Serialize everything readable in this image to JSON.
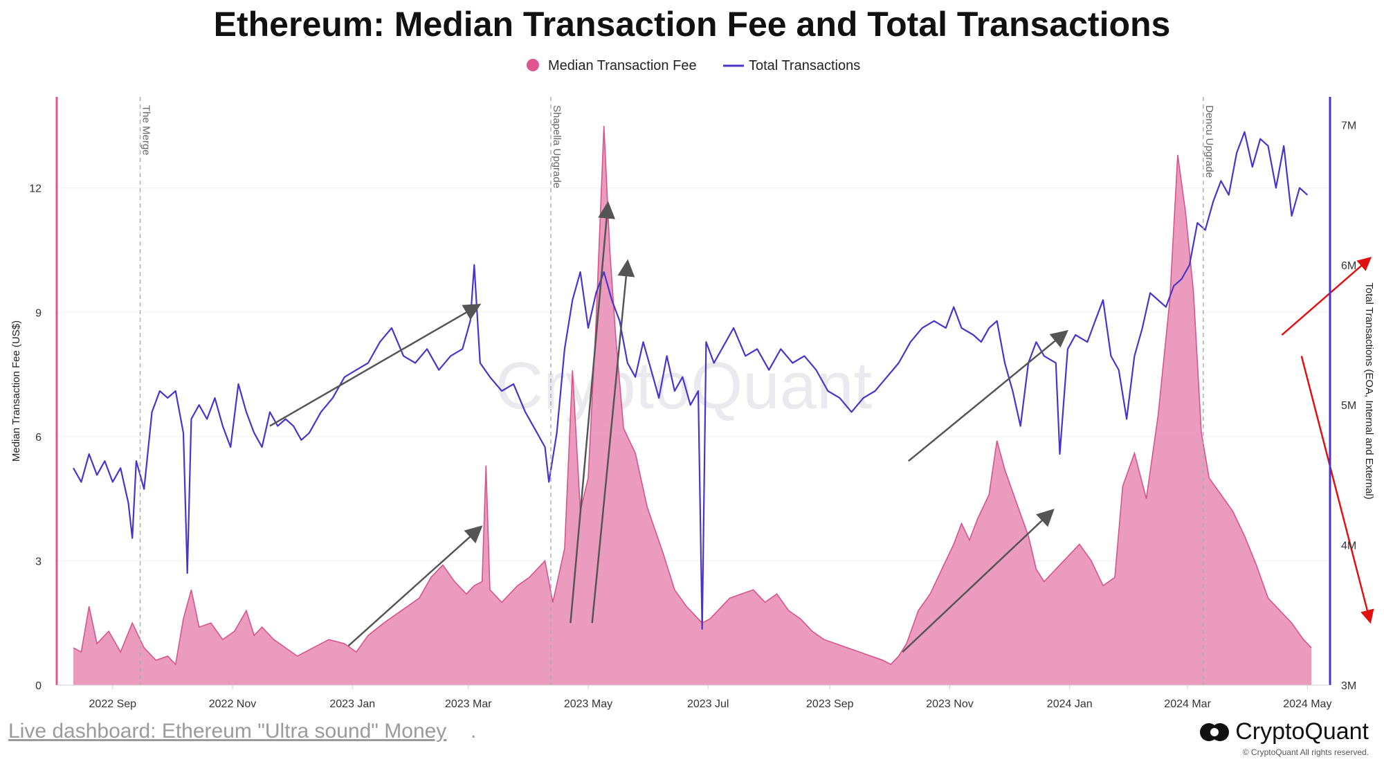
{
  "footer": {
    "link_text": "Live dashboard: Ethereum \"Ultra sound\" Money",
    "link_suffix": ".",
    "brand": "CryptoQuant",
    "copyright": "© CryptoQuant All rights reserved."
  },
  "colors": {
    "fee_fill": "#e993b9",
    "fee_line": "#d9538b",
    "tx_line": "#4a33cc",
    "arrow_grey": "#555555",
    "arrow_red": "#e01010",
    "left_axis": "#e05590",
    "right_axis": "#4a33cc"
  },
  "chart_data": {
    "type": "area+line",
    "title": "Ethereum: Median Transaction Fee and Total Transactions",
    "watermark": "CryptoQuant",
    "legend": [
      {
        "name": "Median Transaction Fee",
        "marker": "circle"
      },
      {
        "name": "Total Transactions",
        "marker": "line"
      }
    ],
    "x_axis": {
      "start": "2022-08-12",
      "end": "2024-05-04",
      "ticks": [
        {
          "label": "2022 Sep",
          "day": 20
        },
        {
          "label": "2022 Nov",
          "day": 81
        },
        {
          "label": "2023 Jan",
          "day": 142
        },
        {
          "label": "2023 Mar",
          "day": 201
        },
        {
          "label": "2023 May",
          "day": 262
        },
        {
          "label": "2023 Jul",
          "day": 323
        },
        {
          "label": "2023 Sep",
          "day": 385
        },
        {
          "label": "2023 Nov",
          "day": 446
        },
        {
          "label": "2024 Jan",
          "day": 507
        },
        {
          "label": "2024 Mar",
          "day": 567
        },
        {
          "label": "2024 May",
          "day": 628
        }
      ]
    },
    "y_left": {
      "label": "Median Transaction Fee (US$)",
      "min": 0,
      "max": 14.2,
      "ticks": [
        0,
        3,
        6,
        9,
        12
      ]
    },
    "y_right": {
      "label": "Total Transactions (EOA, Internal and External)",
      "min": 3000000,
      "max": 7200000,
      "ticks": [
        {
          "value": 3000000,
          "label": "3M"
        },
        {
          "value": 4000000,
          "label": "4M"
        },
        {
          "value": 5000000,
          "label": "5M"
        },
        {
          "value": 6000000,
          "label": "6M"
        },
        {
          "value": 7000000,
          "label": "7M"
        }
      ]
    },
    "events": [
      {
        "label": "The Merge",
        "day": 34
      },
      {
        "label": "Shapella Upgrade",
        "day": 243
      },
      {
        "label": "Dencu Upgrade",
        "day": 575
      }
    ],
    "series": [
      {
        "name": "Median Transaction Fee",
        "axis": "left",
        "kind": "area",
        "points": [
          [
            0,
            0.9
          ],
          [
            4,
            0.8
          ],
          [
            8,
            1.9
          ],
          [
            12,
            1.0
          ],
          [
            18,
            1.3
          ],
          [
            24,
            0.8
          ],
          [
            30,
            1.5
          ],
          [
            36,
            0.9
          ],
          [
            42,
            0.6
          ],
          [
            48,
            0.7
          ],
          [
            52,
            0.5
          ],
          [
            56,
            1.6
          ],
          [
            60,
            2.3
          ],
          [
            64,
            1.4
          ],
          [
            70,
            1.5
          ],
          [
            76,
            1.1
          ],
          [
            82,
            1.3
          ],
          [
            88,
            1.8
          ],
          [
            92,
            1.2
          ],
          [
            96,
            1.4
          ],
          [
            102,
            1.1
          ],
          [
            108,
            0.9
          ],
          [
            114,
            0.7
          ],
          [
            122,
            0.9
          ],
          [
            130,
            1.1
          ],
          [
            138,
            1.0
          ],
          [
            144,
            0.8
          ],
          [
            150,
            1.2
          ],
          [
            158,
            1.5
          ],
          [
            164,
            1.7
          ],
          [
            170,
            1.9
          ],
          [
            176,
            2.1
          ],
          [
            182,
            2.6
          ],
          [
            188,
            2.9
          ],
          [
            194,
            2.5
          ],
          [
            200,
            2.2
          ],
          [
            204,
            2.4
          ],
          [
            208,
            2.5
          ],
          [
            210,
            5.3
          ],
          [
            212,
            2.3
          ],
          [
            218,
            2.0
          ],
          [
            226,
            2.4
          ],
          [
            232,
            2.6
          ],
          [
            240,
            3.0
          ],
          [
            244,
            2.0
          ],
          [
            250,
            3.3
          ],
          [
            254,
            7.6
          ],
          [
            258,
            4.2
          ],
          [
            262,
            5.0
          ],
          [
            266,
            8.8
          ],
          [
            270,
            13.5
          ],
          [
            273,
            10.5
          ],
          [
            276,
            8.4
          ],
          [
            280,
            6.2
          ],
          [
            286,
            5.6
          ],
          [
            292,
            4.3
          ],
          [
            300,
            3.2
          ],
          [
            306,
            2.3
          ],
          [
            312,
            1.9
          ],
          [
            316,
            1.7
          ],
          [
            320,
            1.5
          ],
          [
            324,
            1.6
          ],
          [
            328,
            1.8
          ],
          [
            334,
            2.1
          ],
          [
            340,
            2.2
          ],
          [
            346,
            2.3
          ],
          [
            352,
            2.0
          ],
          [
            358,
            2.2
          ],
          [
            364,
            1.8
          ],
          [
            370,
            1.6
          ],
          [
            376,
            1.3
          ],
          [
            382,
            1.1
          ],
          [
            388,
            1.0
          ],
          [
            394,
            0.9
          ],
          [
            400,
            0.8
          ],
          [
            406,
            0.7
          ],
          [
            412,
            0.6
          ],
          [
            416,
            0.5
          ],
          [
            420,
            0.7
          ],
          [
            424,
            1.0
          ],
          [
            430,
            1.8
          ],
          [
            436,
            2.2
          ],
          [
            442,
            2.8
          ],
          [
            448,
            3.4
          ],
          [
            452,
            3.9
          ],
          [
            456,
            3.5
          ],
          [
            460,
            4.0
          ],
          [
            466,
            4.6
          ],
          [
            470,
            5.9
          ],
          [
            474,
            5.2
          ],
          [
            480,
            4.4
          ],
          [
            486,
            3.6
          ],
          [
            490,
            2.8
          ],
          [
            494,
            2.5
          ],
          [
            500,
            2.8
          ],
          [
            506,
            3.1
          ],
          [
            512,
            3.4
          ],
          [
            518,
            3.0
          ],
          [
            524,
            2.4
          ],
          [
            530,
            2.6
          ],
          [
            534,
            4.8
          ],
          [
            540,
            5.6
          ],
          [
            546,
            4.5
          ],
          [
            552,
            6.5
          ],
          [
            558,
            9.3
          ],
          [
            562,
            12.8
          ],
          [
            566,
            11.4
          ],
          [
            570,
            9.5
          ],
          [
            574,
            6.1
          ],
          [
            578,
            5.0
          ],
          [
            584,
            4.6
          ],
          [
            590,
            4.2
          ],
          [
            596,
            3.6
          ],
          [
            602,
            2.9
          ],
          [
            608,
            2.1
          ],
          [
            614,
            1.8
          ],
          [
            620,
            1.5
          ],
          [
            626,
            1.1
          ],
          [
            630,
            0.9
          ]
        ]
      },
      {
        "name": "Total Transactions",
        "axis": "right",
        "kind": "line",
        "points": [
          [
            0,
            4.55
          ],
          [
            4,
            4.45
          ],
          [
            8,
            4.65
          ],
          [
            12,
            4.5
          ],
          [
            16,
            4.6
          ],
          [
            20,
            4.45
          ],
          [
            24,
            4.55
          ],
          [
            28,
            4.3
          ],
          [
            30,
            4.05
          ],
          [
            32,
            4.6
          ],
          [
            36,
            4.4
          ],
          [
            40,
            4.95
          ],
          [
            44,
            5.1
          ],
          [
            48,
            5.05
          ],
          [
            52,
            5.1
          ],
          [
            56,
            4.8
          ],
          [
            58,
            3.8
          ],
          [
            60,
            4.9
          ],
          [
            64,
            5.0
          ],
          [
            68,
            4.9
          ],
          [
            72,
            5.05
          ],
          [
            76,
            4.85
          ],
          [
            80,
            4.7
          ],
          [
            84,
            5.15
          ],
          [
            88,
            4.95
          ],
          [
            92,
            4.8
          ],
          [
            96,
            4.7
          ],
          [
            100,
            4.95
          ],
          [
            104,
            4.85
          ],
          [
            108,
            4.9
          ],
          [
            112,
            4.85
          ],
          [
            116,
            4.75
          ],
          [
            120,
            4.8
          ],
          [
            126,
            4.95
          ],
          [
            132,
            5.05
          ],
          [
            138,
            5.2
          ],
          [
            144,
            5.25
          ],
          [
            150,
            5.3
          ],
          [
            156,
            5.45
          ],
          [
            162,
            5.55
          ],
          [
            168,
            5.35
          ],
          [
            174,
            5.3
          ],
          [
            180,
            5.4
          ],
          [
            186,
            5.25
          ],
          [
            192,
            5.35
          ],
          [
            198,
            5.4
          ],
          [
            202,
            5.6
          ],
          [
            204,
            6.0
          ],
          [
            207,
            5.3
          ],
          [
            212,
            5.2
          ],
          [
            218,
            5.1
          ],
          [
            224,
            5.15
          ],
          [
            230,
            4.95
          ],
          [
            236,
            4.8
          ],
          [
            240,
            4.7
          ],
          [
            242,
            4.45
          ],
          [
            246,
            4.8
          ],
          [
            250,
            5.4
          ],
          [
            254,
            5.75
          ],
          [
            258,
            5.95
          ],
          [
            262,
            5.55
          ],
          [
            266,
            5.8
          ],
          [
            270,
            5.95
          ],
          [
            274,
            5.75
          ],
          [
            278,
            5.6
          ],
          [
            282,
            5.3
          ],
          [
            286,
            5.2
          ],
          [
            290,
            5.45
          ],
          [
            294,
            5.25
          ],
          [
            298,
            5.05
          ],
          [
            302,
            5.35
          ],
          [
            306,
            5.1
          ],
          [
            310,
            5.2
          ],
          [
            314,
            5.0
          ],
          [
            318,
            5.1
          ],
          [
            320,
            3.4
          ],
          [
            322,
            5.45
          ],
          [
            326,
            5.3
          ],
          [
            330,
            5.4
          ],
          [
            336,
            5.55
          ],
          [
            342,
            5.35
          ],
          [
            348,
            5.4
          ],
          [
            354,
            5.25
          ],
          [
            360,
            5.4
          ],
          [
            366,
            5.3
          ],
          [
            372,
            5.35
          ],
          [
            378,
            5.25
          ],
          [
            384,
            5.1
          ],
          [
            390,
            5.05
          ],
          [
            396,
            4.95
          ],
          [
            402,
            5.05
          ],
          [
            408,
            5.1
          ],
          [
            414,
            5.2
          ],
          [
            420,
            5.3
          ],
          [
            426,
            5.45
          ],
          [
            432,
            5.55
          ],
          [
            438,
            5.6
          ],
          [
            444,
            5.55
          ],
          [
            448,
            5.7
          ],
          [
            452,
            5.55
          ],
          [
            458,
            5.5
          ],
          [
            462,
            5.45
          ],
          [
            466,
            5.55
          ],
          [
            470,
            5.6
          ],
          [
            474,
            5.3
          ],
          [
            478,
            5.1
          ],
          [
            482,
            4.85
          ],
          [
            486,
            5.3
          ],
          [
            490,
            5.45
          ],
          [
            494,
            5.35
          ],
          [
            500,
            5.3
          ],
          [
            502,
            4.65
          ],
          [
            506,
            5.4
          ],
          [
            510,
            5.5
          ],
          [
            516,
            5.45
          ],
          [
            520,
            5.6
          ],
          [
            524,
            5.75
          ],
          [
            528,
            5.35
          ],
          [
            532,
            5.25
          ],
          [
            536,
            4.9
          ],
          [
            540,
            5.35
          ],
          [
            544,
            5.55
          ],
          [
            548,
            5.8
          ],
          [
            552,
            5.75
          ],
          [
            556,
            5.7
          ],
          [
            560,
            5.85
          ],
          [
            564,
            5.9
          ],
          [
            568,
            6.0
          ],
          [
            572,
            6.3
          ],
          [
            576,
            6.25
          ],
          [
            580,
            6.45
          ],
          [
            584,
            6.6
          ],
          [
            588,
            6.5
          ],
          [
            592,
            6.8
          ],
          [
            596,
            6.95
          ],
          [
            600,
            6.7
          ],
          [
            604,
            6.9
          ],
          [
            608,
            6.85
          ],
          [
            612,
            6.55
          ],
          [
            616,
            6.85
          ],
          [
            620,
            6.35
          ],
          [
            624,
            6.55
          ],
          [
            628,
            6.5
          ]
        ]
      }
    ],
    "annotations": {
      "grey_arrows": [
        {
          "from": [
            140,
            0.95
          ],
          "to": [
            207,
            3.8
          ],
          "axis": "left"
        },
        {
          "from": [
            253,
            1.5
          ],
          "to": [
            272,
            11.6
          ],
          "axis": "left"
        },
        {
          "from": [
            264,
            1.5
          ],
          "to": [
            282,
            10.2
          ],
          "axis": "left"
        },
        {
          "from": [
            100,
            4.85
          ],
          "to": [
            206,
            5.71
          ],
          "axis": "right"
        },
        {
          "from": [
            425,
            4.6
          ],
          "to": [
            505,
            5.52
          ],
          "axis": "right"
        },
        {
          "from": [
            422,
            0.8
          ],
          "to": [
            498,
            4.2
          ],
          "axis": "left"
        }
      ],
      "red_arrows": [
        {
          "from": [
            615,
            5.5
          ],
          "to": [
            660,
            6.05
          ],
          "axis": "right"
        },
        {
          "from": [
            625,
            5.35
          ],
          "to": [
            660,
            3.45
          ],
          "axis": "right"
        }
      ]
    }
  }
}
